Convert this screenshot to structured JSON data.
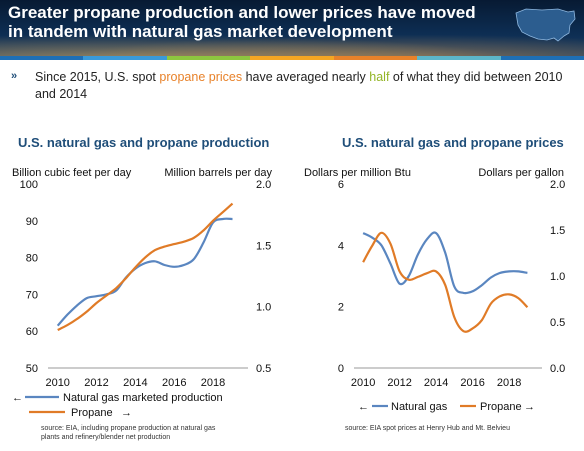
{
  "header": {
    "title": "Greater propane production and lower prices have moved in tandem with natural gas market development",
    "stripe_colors": [
      "#1e6fb5",
      "#3a9ad9",
      "#8dc63f",
      "#f5a623",
      "#e8822a",
      "#5cb6c9",
      "#1e6fb5"
    ]
  },
  "bullet": {
    "icon": "chevron-right-icon",
    "part1": "Since 2015, U.S. spot ",
    "highlight1": "propane prices",
    "part2": " have averaged nearly ",
    "highlight2": "half",
    "part3": " of what they did between 2010 and 2014"
  },
  "colors": {
    "natural_gas": "#5a86c0",
    "propane": "#e07b27",
    "title": "#1f4e79"
  },
  "chart_data": [
    {
      "type": "line",
      "title": "U.S. natural gas and propane production",
      "ylabel_left": "Billion cubic feet per day",
      "ylabel_right": "Million barrels per day",
      "xlim": [
        2009.5,
        2019.8
      ],
      "x_ticks": [
        "2010",
        "2012",
        "2014",
        "2016",
        "2018"
      ],
      "ylim_left": [
        50,
        100
      ],
      "y_ticks_left": [
        "50",
        "60",
        "70",
        "80",
        "90",
        "100"
      ],
      "ylim_right": [
        0.5,
        2.0
      ],
      "y_ticks_right": [
        "0.5",
        "1.0",
        "1.5",
        "2.0"
      ],
      "series": [
        {
          "name": "Natural gas marketed production",
          "axis": "left",
          "arrow": "←",
          "x": [
            2010,
            2010.5,
            2011,
            2011.5,
            2012,
            2012.5,
            2013,
            2013.5,
            2014,
            2014.5,
            2015,
            2015.5,
            2016,
            2016.5,
            2017,
            2017.5,
            2018,
            2018.5,
            2019
          ],
          "y": [
            61.5,
            64.5,
            67,
            69,
            69.5,
            70,
            71,
            74.5,
            77,
            78.5,
            79,
            78,
            77.5,
            78,
            79.5,
            84,
            89.5,
            90.5,
            90.5
          ]
        },
        {
          "name": "Propane",
          "axis": "right",
          "arrow": "→",
          "x": [
            2010,
            2010.5,
            2011,
            2011.5,
            2012,
            2012.5,
            2013,
            2013.5,
            2014,
            2014.5,
            2015,
            2015.5,
            2016,
            2016.5,
            2017,
            2017.5,
            2018,
            2018.5,
            2019
          ],
          "y": [
            0.81,
            0.85,
            0.9,
            0.96,
            1.03,
            1.09,
            1.15,
            1.23,
            1.32,
            1.4,
            1.46,
            1.49,
            1.51,
            1.53,
            1.56,
            1.62,
            1.7,
            1.77,
            1.84
          ]
        }
      ],
      "source": "source: EIA, including propane production at natural gas plants and refinery/blender net production"
    },
    {
      "type": "line",
      "title": "U.S. natural gas and propane prices",
      "ylabel_left": "Dollars per million Btu",
      "ylabel_right": "Dollars per gallon",
      "xlim": [
        2009.5,
        2019.8
      ],
      "x_ticks": [
        "2010",
        "2012",
        "2014",
        "2016",
        "2018"
      ],
      "ylim_left": [
        0,
        6
      ],
      "y_ticks_left": [
        "0",
        "2",
        "4",
        "6"
      ],
      "ylim_right": [
        0,
        2.0
      ],
      "y_ticks_right": [
        "0.0",
        "0.5",
        "1.0",
        "1.5",
        "2.0"
      ],
      "series": [
        {
          "name": "Natural gas",
          "axis": "left",
          "arrow": "←",
          "x": [
            2010,
            2010.5,
            2011,
            2011.5,
            2012,
            2012.5,
            2013,
            2013.5,
            2014,
            2014.5,
            2015,
            2015.5,
            2016,
            2016.5,
            2017,
            2017.5,
            2018,
            2018.5,
            2019
          ],
          "y": [
            4.4,
            4.25,
            4.0,
            3.4,
            2.75,
            3.0,
            3.7,
            4.2,
            4.4,
            3.75,
            2.65,
            2.45,
            2.5,
            2.7,
            2.95,
            3.1,
            3.15,
            3.15,
            3.1
          ]
        },
        {
          "name": "Propane",
          "axis": "right",
          "arrow": "→",
          "x": [
            2010,
            2010.5,
            2011,
            2011.5,
            2012,
            2012.5,
            2013,
            2013.5,
            2014,
            2014.5,
            2015,
            2015.5,
            2016,
            2016.5,
            2017,
            2017.5,
            2018,
            2018.5,
            2019
          ],
          "y": [
            1.15,
            1.33,
            1.47,
            1.35,
            1.05,
            0.96,
            0.99,
            1.03,
            1.05,
            0.9,
            0.55,
            0.4,
            0.43,
            0.52,
            0.7,
            0.78,
            0.8,
            0.76,
            0.66
          ]
        }
      ],
      "source": "source: EIA spot prices at Henry Hub and Mt. Belvieu"
    }
  ]
}
